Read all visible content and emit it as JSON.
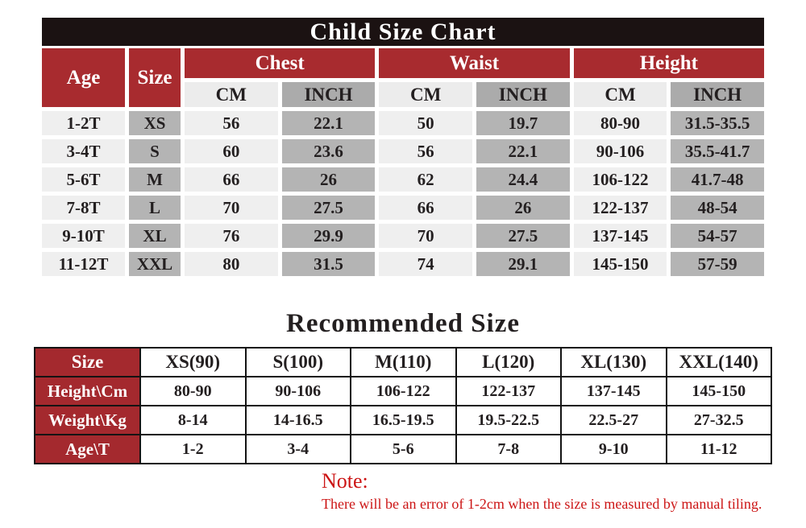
{
  "colors": {
    "title_bar_bg": "#1b1212",
    "header_red": "#a82b2f",
    "table2_red": "#a4292e",
    "light_cell": "#efefef",
    "mid_cell": "#b4b4b4",
    "cm_header_cell": "#ececec",
    "inch_header_cell": "#ababab",
    "text": "#231f20",
    "note_red": "#cc1414",
    "border": "#131313"
  },
  "size_chart": {
    "title": "Child Size Chart",
    "age_label": "Age",
    "size_label": "Size",
    "groups": [
      "Chest",
      "Waist",
      "Height"
    ],
    "unit_cm": "CM",
    "unit_inch": "INCH",
    "rows": [
      {
        "age": "1-2T",
        "size": "XS",
        "chest_cm": "56",
        "chest_inch": "22.1",
        "waist_cm": "50",
        "waist_inch": "19.7",
        "height_cm": "80-90",
        "height_inch": "31.5-35.5"
      },
      {
        "age": "3-4T",
        "size": "S",
        "chest_cm": "60",
        "chest_inch": "23.6",
        "waist_cm": "56",
        "waist_inch": "22.1",
        "height_cm": "90-106",
        "height_inch": "35.5-41.7"
      },
      {
        "age": "5-6T",
        "size": "M",
        "chest_cm": "66",
        "chest_inch": "26",
        "waist_cm": "62",
        "waist_inch": "24.4",
        "height_cm": "106-122",
        "height_inch": "41.7-48"
      },
      {
        "age": "7-8T",
        "size": "L",
        "chest_cm": "70",
        "chest_inch": "27.5",
        "waist_cm": "66",
        "waist_inch": "26",
        "height_cm": "122-137",
        "height_inch": "48-54"
      },
      {
        "age": "9-10T",
        "size": "XL",
        "chest_cm": "76",
        "chest_inch": "29.9",
        "waist_cm": "70",
        "waist_inch": "27.5",
        "height_cm": "137-145",
        "height_inch": "54-57"
      },
      {
        "age": "11-12T",
        "size": "XXL",
        "chest_cm": "80",
        "chest_inch": "31.5",
        "waist_cm": "74",
        "waist_inch": "29.1",
        "height_cm": "145-150",
        "height_inch": "57-59"
      }
    ]
  },
  "recommended": {
    "title": "Recommended Size",
    "rows": [
      {
        "label": "Size",
        "values": [
          "XS(90)",
          "S(100)",
          "M(110)",
          "L(120)",
          "XL(130)",
          "XXL(140)"
        ]
      },
      {
        "label": "Height\\Cm",
        "values": [
          "80-90",
          "90-106",
          "106-122",
          "122-137",
          "137-145",
          "145-150"
        ]
      },
      {
        "label": "Weight\\Kg",
        "values": [
          "8-14",
          "14-16.5",
          "16.5-19.5",
          "19.5-22.5",
          "22.5-27",
          "27-32.5"
        ]
      },
      {
        "label": "Age\\T",
        "values": [
          "1-2",
          "3-4",
          "5-6",
          "7-8",
          "9-10",
          "11-12"
        ]
      }
    ]
  },
  "note": {
    "heading": "Note:",
    "text": "There will be an error of 1-2cm when the size is measured by manual tiling."
  }
}
